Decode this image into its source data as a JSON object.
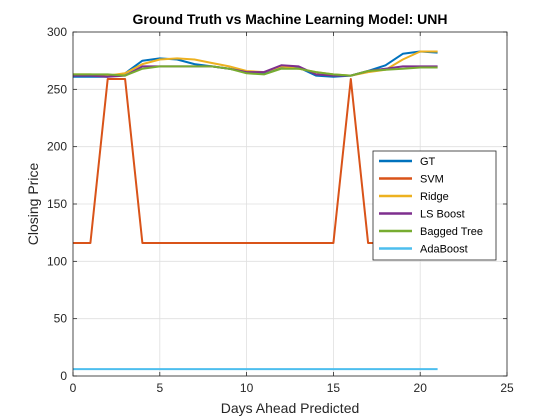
{
  "chart_data": {
    "type": "line",
    "title": "Ground Truth vs Machine Learning Model: UNH",
    "xlabel": "Days Ahead Predicted",
    "ylabel": "Closing Price",
    "xlim": [
      0,
      25
    ],
    "ylim": [
      0,
      300
    ],
    "xticks": [
      0,
      5,
      10,
      15,
      20,
      25
    ],
    "yticks": [
      0,
      50,
      100,
      150,
      200,
      250,
      300
    ],
    "grid": true,
    "legend_position": "right",
    "x": [
      0,
      1,
      2,
      3,
      4,
      5,
      6,
      7,
      8,
      9,
      10,
      11,
      12,
      13,
      14,
      15,
      16,
      17,
      18,
      19,
      20,
      21
    ],
    "series": [
      {
        "name": "GT",
        "color": "#0072BD",
        "values": [
          261,
          261,
          261,
          264,
          275,
          277,
          276,
          272,
          270,
          268,
          265,
          264,
          269,
          269,
          262,
          261,
          262,
          266,
          271,
          281,
          283,
          282
        ]
      },
      {
        "name": "SVM",
        "color": "#D95319",
        "values": [
          116,
          116,
          259,
          259,
          116,
          116,
          116,
          116,
          116,
          116,
          116,
          116,
          116,
          116,
          116,
          116,
          259,
          116,
          116,
          116,
          116,
          116
        ]
      },
      {
        "name": "Ridge",
        "color": "#EDB120",
        "values": [
          263,
          263,
          262,
          264,
          272,
          276,
          277,
          276,
          273,
          270,
          266,
          265,
          270,
          268,
          265,
          263,
          262,
          265,
          267,
          276,
          283,
          283
        ]
      },
      {
        "name": "LS Boost",
        "color": "#7E2F8E",
        "values": [
          262,
          262,
          261,
          262,
          270,
          270,
          270,
          270,
          270,
          268,
          265,
          265,
          271,
          270,
          263,
          262,
          262,
          266,
          268,
          270,
          270,
          270
        ]
      },
      {
        "name": "Bagged Tree",
        "color": "#77AC30",
        "values": [
          263,
          263,
          263,
          262,
          268,
          270,
          270,
          270,
          270,
          268,
          264,
          263,
          268,
          268,
          265,
          263,
          262,
          266,
          267,
          268,
          269,
          269
        ]
      },
      {
        "name": "AdaBoost",
        "color": "#4DBEEE",
        "values": [
          6,
          6,
          6,
          6,
          6,
          6,
          6,
          6,
          6,
          6,
          6,
          6,
          6,
          6,
          6,
          6,
          6,
          6,
          6,
          6,
          6,
          6
        ]
      }
    ]
  }
}
